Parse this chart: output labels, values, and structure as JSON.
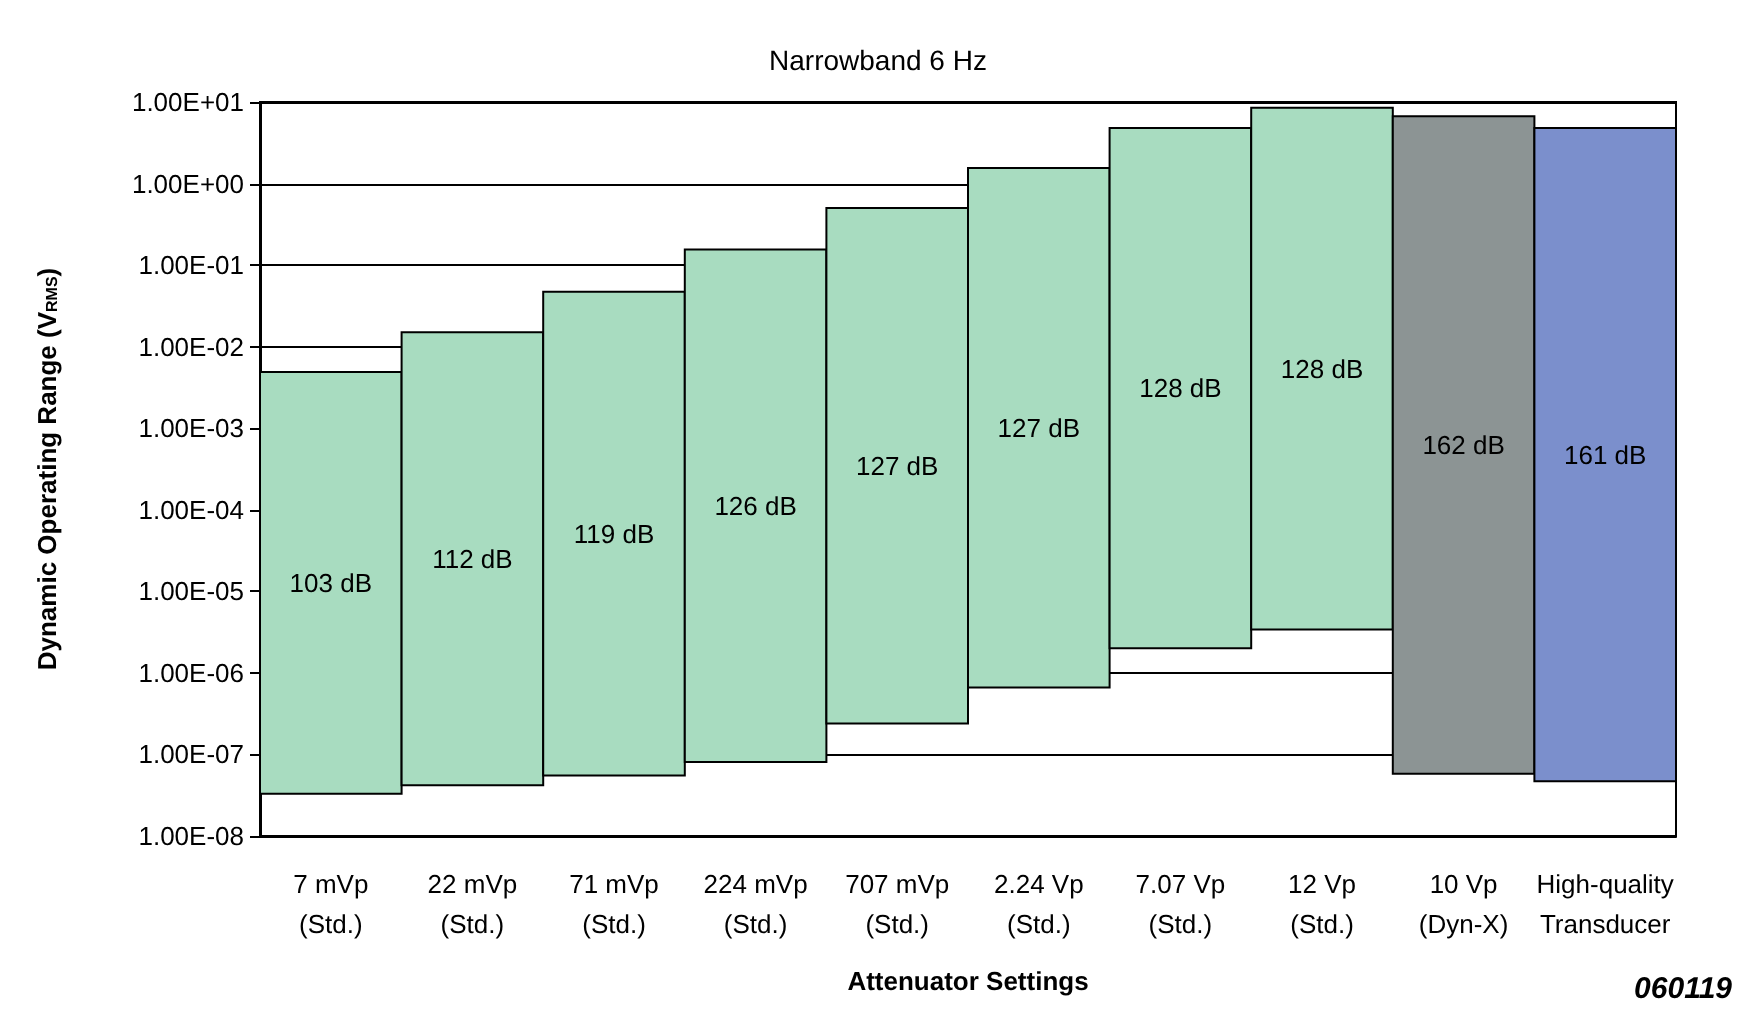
{
  "chart_data": {
    "type": "bar",
    "title": "Narrowband 6 Hz",
    "xlabel": "Attenuator Settings",
    "ylabel": "Dynamic Operating Range (V$_{RMS}$)",
    "categories": [
      "7 mVp\n(Std.)",
      "22 mVp\n(Std.)",
      "71 mVp\n(Std.)",
      "224 mVp\n(Std.)",
      "707 mVp\n(Std.)",
      "2.24 Vp\n(Std.)",
      "7.07 Vp\n(Std.)",
      "12 Vp\n(Std.)",
      "10 Vp\n(Dyn-X)",
      "High-quality\nTransducer"
    ],
    "base": [
      3.3e-08,
      4.2e-08,
      5.5e-08,
      8.1e-08,
      2.4e-07,
      6.6e-07,
      2e-06,
      3.4e-06,
      5.8e-08,
      4.7e-08
    ],
    "values": [
      0.0049,
      0.015,
      0.047,
      0.155,
      0.5,
      1.55,
      4.8,
      8.5,
      6.7,
      4.8
    ],
    "colors": [
      "#a8dcc0",
      "#a8dcc0",
      "#a8dcc0",
      "#a8dcc0",
      "#a8dcc0",
      "#a8dcc0",
      "#a8dcc0",
      "#a8dcc0",
      "#8c9494",
      "#7b8fcc"
    ],
    "log": true,
    "ylim": [
      1e-08,
      10
    ],
    "yticks": [
      {
        "value": 1e-08,
        "label": "1.00E-08"
      },
      {
        "value": 1e-07,
        "label": "1.00E-07"
      },
      {
        "value": 1e-06,
        "label": "1.00E-06"
      },
      {
        "value": 1e-05,
        "label": "1.00E-05"
      },
      {
        "value": 0.0001,
        "label": "1.00E-04"
      },
      {
        "value": 0.001,
        "label": "1.00E-03"
      },
      {
        "value": 0.01,
        "label": "1.00E-02"
      },
      {
        "value": 0.1,
        "label": "1.00E-01"
      },
      {
        "value": 1,
        "label": "1.00E+00"
      },
      {
        "value": 10,
        "label": "1.00E+01"
      }
    ],
    "grid": "y",
    "annotations": [
      "103 dB",
      "112 dB",
      "119 dB",
      "126 dB",
      "127 dB",
      "127 dB",
      "128 dB",
      "128 dB",
      "162 dB",
      "161 dB",
      "060119"
    ]
  }
}
